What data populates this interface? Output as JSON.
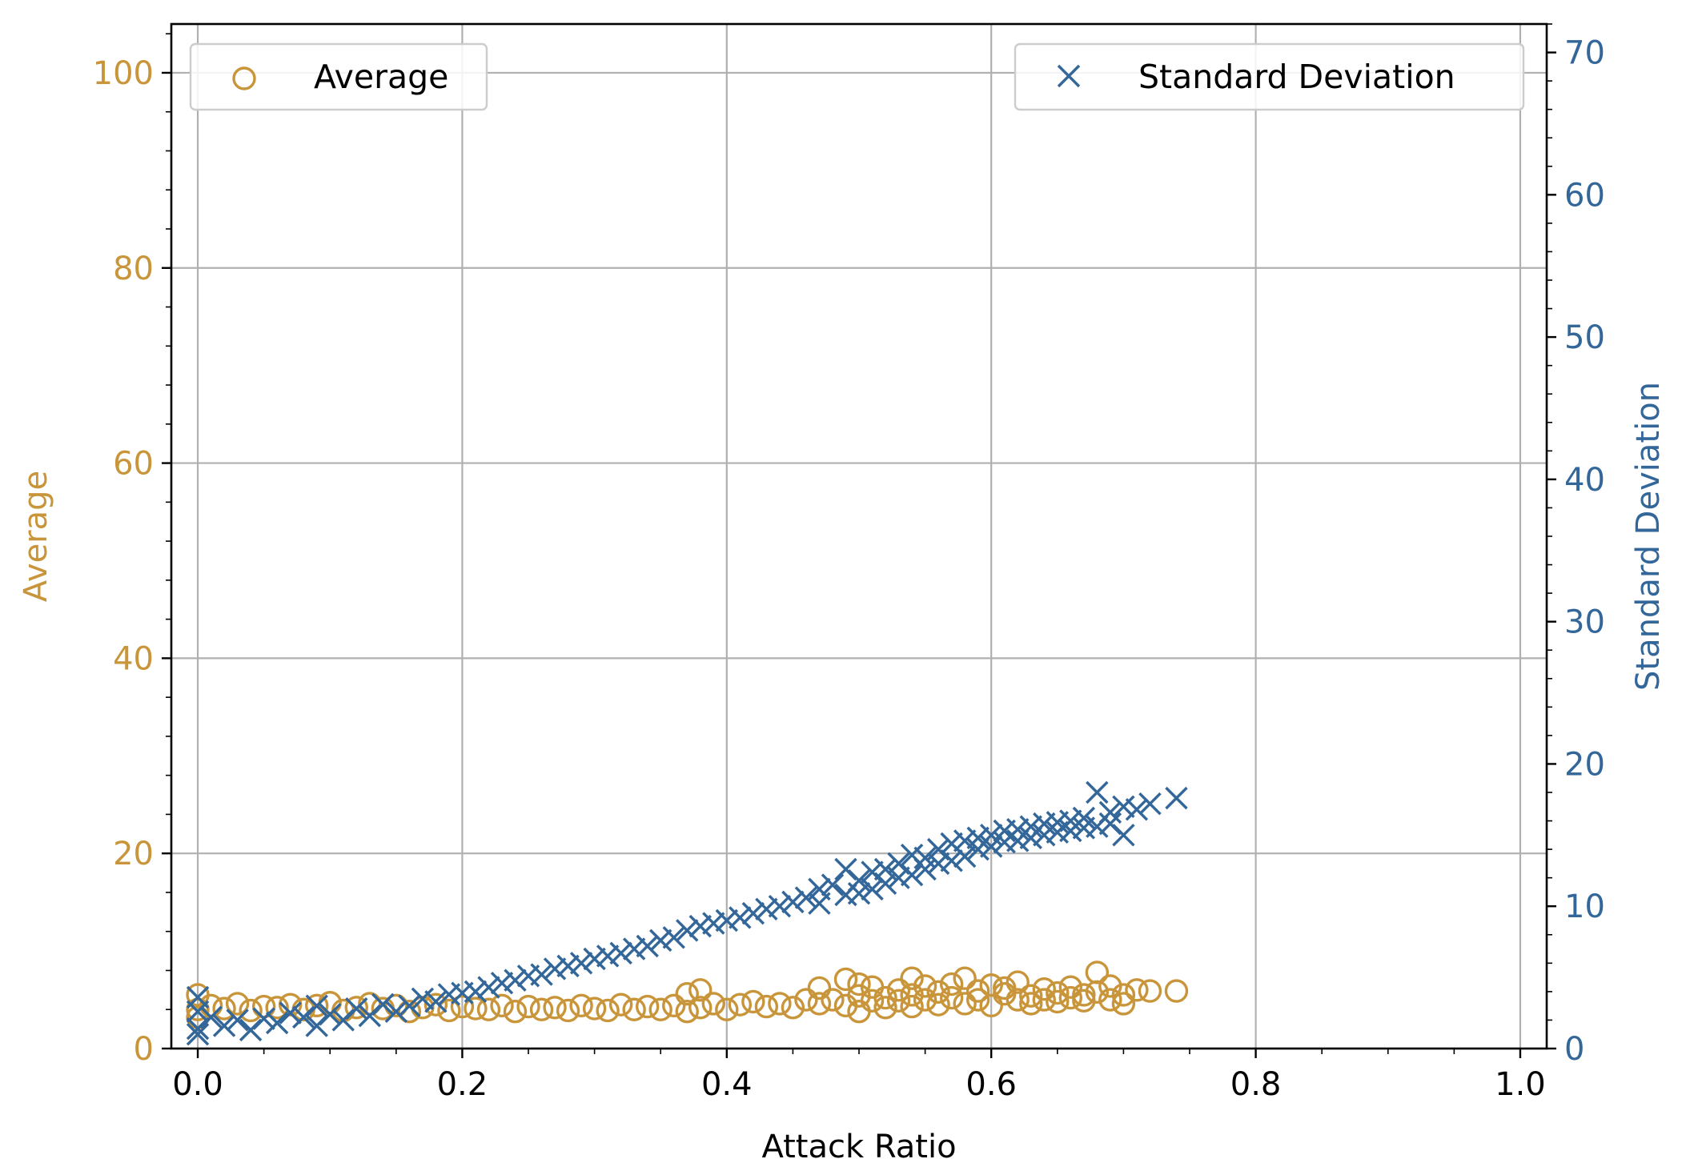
{
  "chart_data": {
    "type": "scatter",
    "title": "",
    "xlabel": "Attack Ratio",
    "ylabel_left": "Average",
    "ylabel_right": "Standard Deviation",
    "xlim": [
      -0.02,
      1.02
    ],
    "ylim_left": [
      0,
      105
    ],
    "ylim_right": [
      0,
      72
    ],
    "x_ticks": [
      "0.0",
      "0.2",
      "0.4",
      "0.6",
      "0.8",
      "1.0"
    ],
    "y_left_ticks": [
      "0",
      "20",
      "40",
      "60",
      "80",
      "100"
    ],
    "y_right_ticks": [
      "0",
      "10",
      "20",
      "30",
      "40",
      "50",
      "60",
      "70"
    ],
    "grid": true,
    "colors": {
      "average": "#c9953a",
      "std": "#336699"
    },
    "series": [
      {
        "name": "Average",
        "axis": "left",
        "marker": "circle-open",
        "legend_position": "top-left",
        "points": [
          [
            0.0,
            4.0
          ],
          [
            0.0,
            5.5
          ],
          [
            0.0,
            3.2
          ],
          [
            0.01,
            4.4
          ],
          [
            0.02,
            4.1
          ],
          [
            0.03,
            4.6
          ],
          [
            0.04,
            3.9
          ],
          [
            0.05,
            4.3
          ],
          [
            0.06,
            4.2
          ],
          [
            0.07,
            4.5
          ],
          [
            0.08,
            4.0
          ],
          [
            0.09,
            4.4
          ],
          [
            0.1,
            4.7
          ],
          [
            0.11,
            3.9
          ],
          [
            0.12,
            4.2
          ],
          [
            0.13,
            4.6
          ],
          [
            0.14,
            4.1
          ],
          [
            0.15,
            4.4
          ],
          [
            0.16,
            3.8
          ],
          [
            0.17,
            4.2
          ],
          [
            0.18,
            4.5
          ],
          [
            0.19,
            3.9
          ],
          [
            0.2,
            4.3
          ],
          [
            0.21,
            4.1
          ],
          [
            0.22,
            4.0
          ],
          [
            0.23,
            4.4
          ],
          [
            0.24,
            3.8
          ],
          [
            0.25,
            4.3
          ],
          [
            0.26,
            4.0
          ],
          [
            0.27,
            4.2
          ],
          [
            0.28,
            3.9
          ],
          [
            0.29,
            4.4
          ],
          [
            0.3,
            4.1
          ],
          [
            0.31,
            3.9
          ],
          [
            0.32,
            4.5
          ],
          [
            0.33,
            4.0
          ],
          [
            0.34,
            4.3
          ],
          [
            0.35,
            4.0
          ],
          [
            0.36,
            4.4
          ],
          [
            0.37,
            3.8
          ],
          [
            0.37,
            5.6
          ],
          [
            0.38,
            6.0
          ],
          [
            0.38,
            4.2
          ],
          [
            0.39,
            4.6
          ],
          [
            0.4,
            4.0
          ],
          [
            0.41,
            4.5
          ],
          [
            0.42,
            4.8
          ],
          [
            0.43,
            4.3
          ],
          [
            0.44,
            4.6
          ],
          [
            0.45,
            4.2
          ],
          [
            0.46,
            5.0
          ],
          [
            0.47,
            4.6
          ],
          [
            0.47,
            6.2
          ],
          [
            0.48,
            5.0
          ],
          [
            0.49,
            4.4
          ],
          [
            0.49,
            7.1
          ],
          [
            0.5,
            5.4
          ],
          [
            0.5,
            6.6
          ],
          [
            0.5,
            3.8
          ],
          [
            0.51,
            4.9
          ],
          [
            0.51,
            6.3
          ],
          [
            0.52,
            5.2
          ],
          [
            0.52,
            4.2
          ],
          [
            0.53,
            6.0
          ],
          [
            0.53,
            4.9
          ],
          [
            0.54,
            7.2
          ],
          [
            0.54,
            5.5
          ],
          [
            0.54,
            4.3
          ],
          [
            0.55,
            6.4
          ],
          [
            0.55,
            5.0
          ],
          [
            0.56,
            5.8
          ],
          [
            0.56,
            4.5
          ],
          [
            0.57,
            6.6
          ],
          [
            0.57,
            5.2
          ],
          [
            0.58,
            7.2
          ],
          [
            0.58,
            4.6
          ],
          [
            0.59,
            5.9
          ],
          [
            0.59,
            5.0
          ],
          [
            0.6,
            6.5
          ],
          [
            0.6,
            4.4
          ],
          [
            0.61,
            5.6
          ],
          [
            0.61,
            6.2
          ],
          [
            0.62,
            5.0
          ],
          [
            0.62,
            6.8
          ],
          [
            0.63,
            5.4
          ],
          [
            0.63,
            4.6
          ],
          [
            0.64,
            6.1
          ],
          [
            0.64,
            5.0
          ],
          [
            0.65,
            5.7
          ],
          [
            0.65,
            4.8
          ],
          [
            0.66,
            6.3
          ],
          [
            0.66,
            5.2
          ],
          [
            0.67,
            5.5
          ],
          [
            0.67,
            4.9
          ],
          [
            0.68,
            7.8
          ],
          [
            0.68,
            5.8
          ],
          [
            0.69,
            6.4
          ],
          [
            0.69,
            5.0
          ],
          [
            0.7,
            4.6
          ],
          [
            0.7,
            5.5
          ],
          [
            0.71,
            6.0
          ],
          [
            0.72,
            5.9
          ],
          [
            0.74,
            5.9
          ]
        ]
      },
      {
        "name": "Standard Deviation",
        "axis": "right",
        "marker": "x",
        "legend_position": "top-right",
        "points": [
          [
            0.0,
            3.6
          ],
          [
            0.0,
            1.4
          ],
          [
            0.0,
            2.6
          ],
          [
            0.0,
            1.0
          ],
          [
            0.01,
            2.2
          ],
          [
            0.02,
            1.6
          ],
          [
            0.03,
            2.0
          ],
          [
            0.04,
            1.3
          ],
          [
            0.05,
            2.1
          ],
          [
            0.06,
            1.8
          ],
          [
            0.07,
            2.5
          ],
          [
            0.08,
            2.2
          ],
          [
            0.09,
            1.6
          ],
          [
            0.09,
            3.0
          ],
          [
            0.1,
            2.4
          ],
          [
            0.11,
            2.0
          ],
          [
            0.12,
            2.8
          ],
          [
            0.13,
            2.3
          ],
          [
            0.14,
            3.1
          ],
          [
            0.15,
            2.6
          ],
          [
            0.16,
            3.0
          ],
          [
            0.17,
            3.5
          ],
          [
            0.18,
            3.3
          ],
          [
            0.19,
            3.8
          ],
          [
            0.2,
            3.9
          ],
          [
            0.21,
            4.0
          ],
          [
            0.22,
            4.3
          ],
          [
            0.23,
            4.6
          ],
          [
            0.24,
            4.8
          ],
          [
            0.25,
            5.1
          ],
          [
            0.26,
            5.2
          ],
          [
            0.27,
            5.6
          ],
          [
            0.28,
            5.8
          ],
          [
            0.29,
            6.0
          ],
          [
            0.3,
            6.3
          ],
          [
            0.31,
            6.5
          ],
          [
            0.32,
            6.7
          ],
          [
            0.33,
            7.0
          ],
          [
            0.34,
            7.2
          ],
          [
            0.35,
            7.6
          ],
          [
            0.36,
            7.8
          ],
          [
            0.37,
            8.3
          ],
          [
            0.38,
            8.6
          ],
          [
            0.39,
            8.8
          ],
          [
            0.4,
            9.0
          ],
          [
            0.41,
            9.2
          ],
          [
            0.42,
            9.5
          ],
          [
            0.43,
            9.8
          ],
          [
            0.44,
            10.0
          ],
          [
            0.45,
            10.3
          ],
          [
            0.46,
            10.6
          ],
          [
            0.47,
            11.2
          ],
          [
            0.47,
            10.2
          ],
          [
            0.48,
            11.5
          ],
          [
            0.49,
            12.6
          ],
          [
            0.49,
            10.8
          ],
          [
            0.5,
            11.8
          ],
          [
            0.5,
            10.9
          ],
          [
            0.51,
            12.4
          ],
          [
            0.51,
            11.2
          ],
          [
            0.52,
            12.6
          ],
          [
            0.52,
            11.6
          ],
          [
            0.53,
            13.0
          ],
          [
            0.53,
            12.0
          ],
          [
            0.54,
            13.6
          ],
          [
            0.54,
            12.2
          ],
          [
            0.55,
            13.4
          ],
          [
            0.55,
            12.6
          ],
          [
            0.56,
            14.0
          ],
          [
            0.56,
            13.0
          ],
          [
            0.57,
            14.4
          ],
          [
            0.57,
            13.2
          ],
          [
            0.58,
            14.6
          ],
          [
            0.58,
            13.5
          ],
          [
            0.59,
            14.8
          ],
          [
            0.59,
            14.0
          ],
          [
            0.6,
            15.0
          ],
          [
            0.6,
            14.2
          ],
          [
            0.61,
            15.3
          ],
          [
            0.61,
            14.5
          ],
          [
            0.62,
            15.4
          ],
          [
            0.62,
            14.6
          ],
          [
            0.63,
            15.6
          ],
          [
            0.63,
            14.8
          ],
          [
            0.64,
            15.8
          ],
          [
            0.64,
            15.0
          ],
          [
            0.65,
            15.9
          ],
          [
            0.65,
            15.2
          ],
          [
            0.66,
            16.0
          ],
          [
            0.66,
            15.3
          ],
          [
            0.67,
            16.2
          ],
          [
            0.67,
            15.5
          ],
          [
            0.68,
            18.0
          ],
          [
            0.68,
            15.6
          ],
          [
            0.69,
            16.6
          ],
          [
            0.69,
            15.8
          ],
          [
            0.7,
            17.0
          ],
          [
            0.7,
            15.0
          ],
          [
            0.71,
            16.8
          ],
          [
            0.72,
            17.2
          ],
          [
            0.74,
            17.6
          ]
        ]
      }
    ]
  }
}
